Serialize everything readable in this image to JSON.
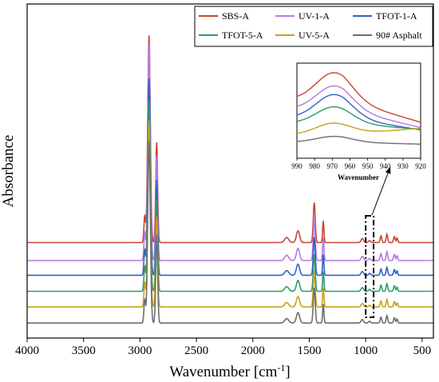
{
  "chart_data": {
    "type": "line",
    "xlabel": "Wavenumber [cm",
    "xlabel_sup": "-1",
    "xlabel_close": "]",
    "ylabel": "Absorbance",
    "x_reversed": true,
    "xlim": [
      4000,
      400
    ],
    "ylim": [
      0,
      1
    ],
    "y_ticks_shown": false,
    "grid": false,
    "legend": "top-right",
    "x_ticks": [
      4000,
      3500,
      3000,
      2500,
      2000,
      1500,
      1000,
      500
    ],
    "x_tick_labels": [
      "4000",
      "3500",
      "3000",
      "2500",
      "2000",
      "1500",
      "1000",
      "500"
    ],
    "colors": {
      "SBS-A": "#cc4433",
      "UV-1-A": "#b47ae0",
      "TFOT-1-A": "#2f62c8",
      "TFOT-5-A": "#2f9b6a",
      "UV-5-A": "#c8a21a",
      "90# Asphalt": "#6e6e6e"
    },
    "series": [
      {
        "name": "SBS-A",
        "baseline": 0.286,
        "scale": 1.0
      },
      {
        "name": "UV-1-A",
        "baseline": 0.232,
        "scale": 1.05
      },
      {
        "name": "TFOT-1-A",
        "baseline": 0.188,
        "scale": 0.95
      },
      {
        "name": "TFOT-5-A",
        "baseline": 0.14,
        "scale": 0.92
      },
      {
        "name": "UV-5-A",
        "baseline": 0.093,
        "scale": 0.9
      },
      {
        "name": "90# Asphalt",
        "baseline": 0.045,
        "scale": 0.88
      }
    ],
    "peaks": [
      {
        "x": 2920,
        "height": 0.62,
        "width": 16
      },
      {
        "x": 2852,
        "height": 0.3,
        "width": 12
      },
      {
        "x": 2958,
        "height": 0.08,
        "width": 10
      },
      {
        "x": 1600,
        "height": 0.035,
        "width": 20
      },
      {
        "x": 1700,
        "height": 0.015,
        "width": 25
      },
      {
        "x": 1456,
        "height": 0.12,
        "width": 12
      },
      {
        "x": 1376,
        "height": 0.065,
        "width": 8
      },
      {
        "x": 1030,
        "height": 0.012,
        "width": 15
      },
      {
        "x": 966,
        "height": 0.006,
        "width": 12
      },
      {
        "x": 865,
        "height": 0.02,
        "width": 10
      },
      {
        "x": 812,
        "height": 0.025,
        "width": 10
      },
      {
        "x": 746,
        "height": 0.018,
        "width": 10
      },
      {
        "x": 722,
        "height": 0.014,
        "width": 8
      }
    ],
    "highlight_box": {
      "x_range": [
        1000,
        930
      ]
    },
    "inset": {
      "xlabel": "Wavenumber",
      "xlim": [
        990,
        920
      ],
      "x_ticks": [
        990,
        980,
        970,
        960,
        950,
        940,
        930,
        920
      ],
      "x_tick_labels": [
        "990",
        "980",
        "970",
        "960",
        "950",
        "940",
        "930",
        "920"
      ],
      "ylim": [
        0,
        1
      ],
      "series": [
        {
          "name": "SBS-A",
          "base": 0.62,
          "amp": 0.28,
          "tail": 0.22
        },
        {
          "name": "UV-1-A",
          "base": 0.52,
          "amp": 0.24,
          "tail": 0.18
        },
        {
          "name": "TFOT-1-A",
          "base": 0.43,
          "amp": 0.24,
          "tail": 0.12
        },
        {
          "name": "TFOT-5-A",
          "base": 0.37,
          "amp": 0.17,
          "tail": 0.06
        },
        {
          "name": "UV-5-A",
          "base": 0.25,
          "amp": 0.12,
          "tail": -0.06
        },
        {
          "name": "90# Asphalt",
          "base": 0.17,
          "amp": 0.06,
          "tail": 0.02
        }
      ],
      "peak_x": 969
    }
  }
}
